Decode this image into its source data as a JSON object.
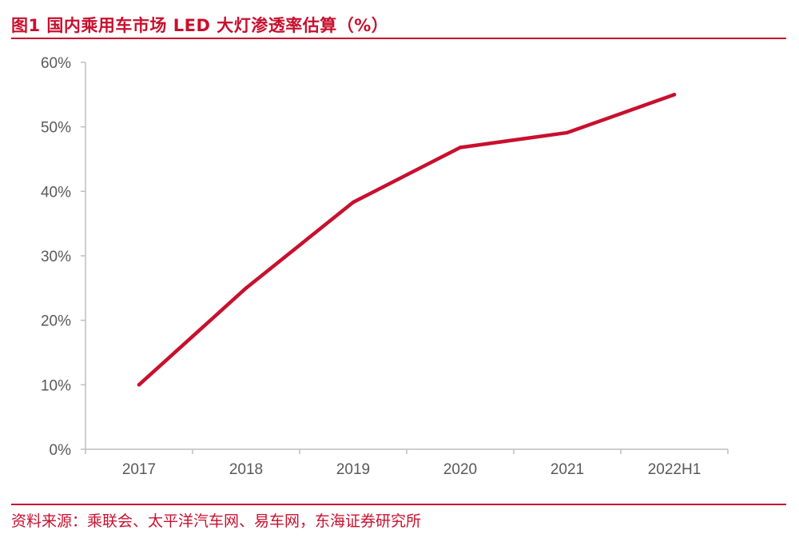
{
  "figure": {
    "title": "图1  国内乘用车市场 LED 大灯渗透率估算（%）",
    "source": "资料来源：乘联会、太平洋汽车网、易车网，东海证券研究所"
  },
  "colors": {
    "accent": "#c8102e",
    "line": "#c8102e",
    "axis": "#bfbfbf",
    "tick_text": "#595959"
  },
  "chart_data": {
    "type": "line",
    "categories": [
      "2017",
      "2018",
      "2019",
      "2020",
      "2021",
      "2022H1"
    ],
    "series": [
      {
        "values": [
          10,
          25,
          38.3,
          46.8,
          49.1,
          55
        ]
      }
    ],
    "ylim": [
      0,
      60
    ],
    "yticks": [
      0,
      10,
      20,
      30,
      40,
      50,
      60
    ],
    "ytick_labels": [
      "0%",
      "10%",
      "20%",
      "30%",
      "40%",
      "50%",
      "60%"
    ],
    "grid": false,
    "legend": "none"
  }
}
